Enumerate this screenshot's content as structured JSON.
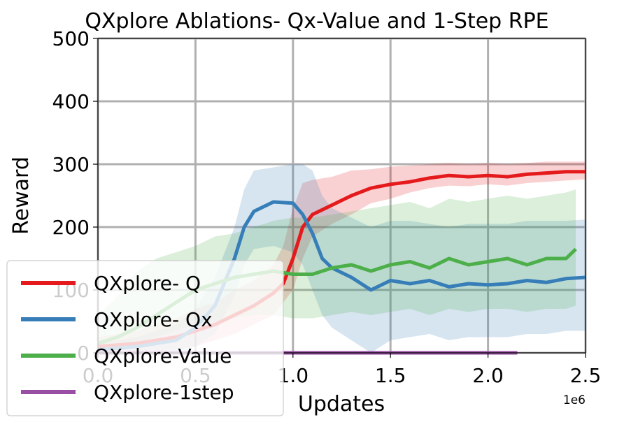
{
  "chart_data": {
    "type": "line",
    "title": "QXplore Ablations- Qx-Value and 1-Step RPE",
    "xlabel": "Updates",
    "ylabel": "Reward",
    "x_scale_label": "1e6",
    "xlim": [
      0,
      2.5
    ],
    "ylim": [
      0,
      500
    ],
    "xticks": [
      "0.0",
      "0.5",
      "1.0",
      "1.5",
      "2.0",
      "2.5"
    ],
    "yticks": [
      "0",
      "100",
      "200",
      "300",
      "400",
      "500"
    ],
    "grid": true,
    "legend_position": "lower-left",
    "series": [
      {
        "name": "QXplore- Q",
        "color": "#e41a1c",
        "x": [
          0.0,
          0.2,
          0.4,
          0.5,
          0.6,
          0.7,
          0.8,
          0.9,
          0.95,
          1.0,
          1.05,
          1.1,
          1.2,
          1.3,
          1.4,
          1.5,
          1.6,
          1.7,
          1.8,
          1.9,
          2.0,
          2.1,
          2.2,
          2.3,
          2.4,
          2.5
        ],
        "y": [
          10,
          15,
          25,
          35,
          45,
          60,
          75,
          95,
          110,
          150,
          200,
          220,
          235,
          250,
          262,
          268,
          272,
          278,
          282,
          280,
          282,
          280,
          284,
          286,
          288,
          288
        ],
        "band_low": [
          0,
          0,
          5,
          10,
          20,
          30,
          45,
          60,
          80,
          100,
          150,
          185,
          205,
          220,
          238,
          245,
          255,
          262,
          266,
          265,
          268,
          266,
          270,
          272,
          274,
          276
        ],
        "band_high": [
          25,
          35,
          55,
          70,
          80,
          100,
          115,
          140,
          170,
          230,
          270,
          275,
          280,
          290,
          292,
          296,
          298,
          300,
          302,
          300,
          302,
          300,
          302,
          304,
          304,
          304
        ]
      },
      {
        "name": "QXplore- Qx",
        "color": "#377eb8",
        "x": [
          0.0,
          0.2,
          0.4,
          0.5,
          0.6,
          0.7,
          0.75,
          0.8,
          0.9,
          1.0,
          1.05,
          1.1,
          1.15,
          1.2,
          1.3,
          1.4,
          1.5,
          1.6,
          1.7,
          1.8,
          1.9,
          2.0,
          2.1,
          2.2,
          2.3,
          2.4,
          2.5
        ],
        "y": [
          5,
          10,
          20,
          40,
          75,
          150,
          200,
          225,
          240,
          238,
          220,
          190,
          150,
          135,
          120,
          100,
          115,
          110,
          115,
          105,
          110,
          108,
          110,
          115,
          112,
          118,
          120
        ],
        "band_low": [
          0,
          0,
          0,
          10,
          30,
          90,
          140,
          165,
          170,
          160,
          140,
          100,
          60,
          40,
          20,
          0,
          20,
          25,
          30,
          20,
          25,
          25,
          25,
          30,
          30,
          35,
          35
        ],
        "band_high": [
          15,
          25,
          45,
          70,
          120,
          200,
          260,
          290,
          295,
          300,
          300,
          290,
          250,
          230,
          215,
          200,
          210,
          210,
          205,
          200,
          205,
          205,
          205,
          210,
          210,
          210,
          212
        ]
      },
      {
        "name": "QXplore-Value",
        "color": "#4daf4a",
        "x": [
          0.0,
          0.1,
          0.2,
          0.3,
          0.4,
          0.5,
          0.6,
          0.7,
          0.8,
          0.9,
          1.0,
          1.1,
          1.2,
          1.3,
          1.4,
          1.5,
          1.6,
          1.7,
          1.8,
          1.9,
          2.0,
          2.1,
          2.2,
          2.3,
          2.4,
          2.45
        ],
        "y": [
          15,
          25,
          40,
          60,
          80,
          100,
          110,
          120,
          125,
          130,
          125,
          125,
          135,
          140,
          130,
          140,
          145,
          135,
          150,
          140,
          145,
          150,
          140,
          150,
          150,
          165
        ],
        "band_low": [
          0,
          5,
          15,
          25,
          35,
          45,
          50,
          55,
          60,
          60,
          55,
          55,
          60,
          65,
          60,
          65,
          70,
          60,
          70,
          65,
          70,
          70,
          65,
          70,
          70,
          75
        ],
        "band_high": [
          60,
          90,
          130,
          150,
          160,
          170,
          185,
          190,
          200,
          210,
          215,
          215,
          220,
          225,
          230,
          235,
          240,
          230,
          245,
          240,
          245,
          250,
          245,
          250,
          255,
          260
        ]
      },
      {
        "name": "QXplore-1step",
        "color": "#984ea3",
        "x": [
          0.0,
          0.5,
          1.0,
          1.5,
          2.0,
          2.15
        ],
        "y": [
          0,
          0,
          0,
          0,
          0,
          0
        ],
        "band_low": [
          0,
          0,
          0,
          0,
          0,
          0
        ],
        "band_high": [
          3,
          3,
          3,
          3,
          3,
          3
        ]
      }
    ]
  }
}
